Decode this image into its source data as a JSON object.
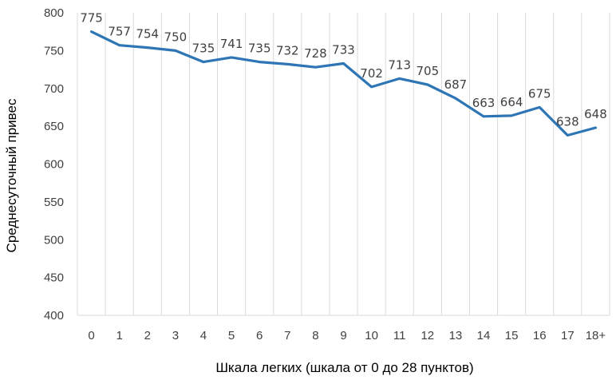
{
  "chart_data": {
    "type": "line",
    "title": "",
    "xlabel": "Шкала легких (шкала от 0 до 28 пунктов)",
    "ylabel": "Среднесуточный привес",
    "categories": [
      "0",
      "1",
      "2",
      "3",
      "4",
      "5",
      "6",
      "7",
      "8",
      "9",
      "10",
      "11",
      "12",
      "13",
      "14",
      "15",
      "16",
      "17",
      "18+"
    ],
    "series": [
      {
        "values": [
          775,
          757,
          754,
          750,
          735,
          741,
          735,
          732,
          728,
          733,
          702,
          713,
          705,
          687,
          663,
          664,
          675,
          638,
          648
        ]
      }
    ],
    "ylim": [
      400,
      800
    ],
    "yticks": [
      400,
      450,
      500,
      550,
      600,
      650,
      700,
      750,
      800
    ],
    "grid": "vertical",
    "legend": "none",
    "line_color": "#2E75B6",
    "grid_color": "#D9D9D9"
  }
}
